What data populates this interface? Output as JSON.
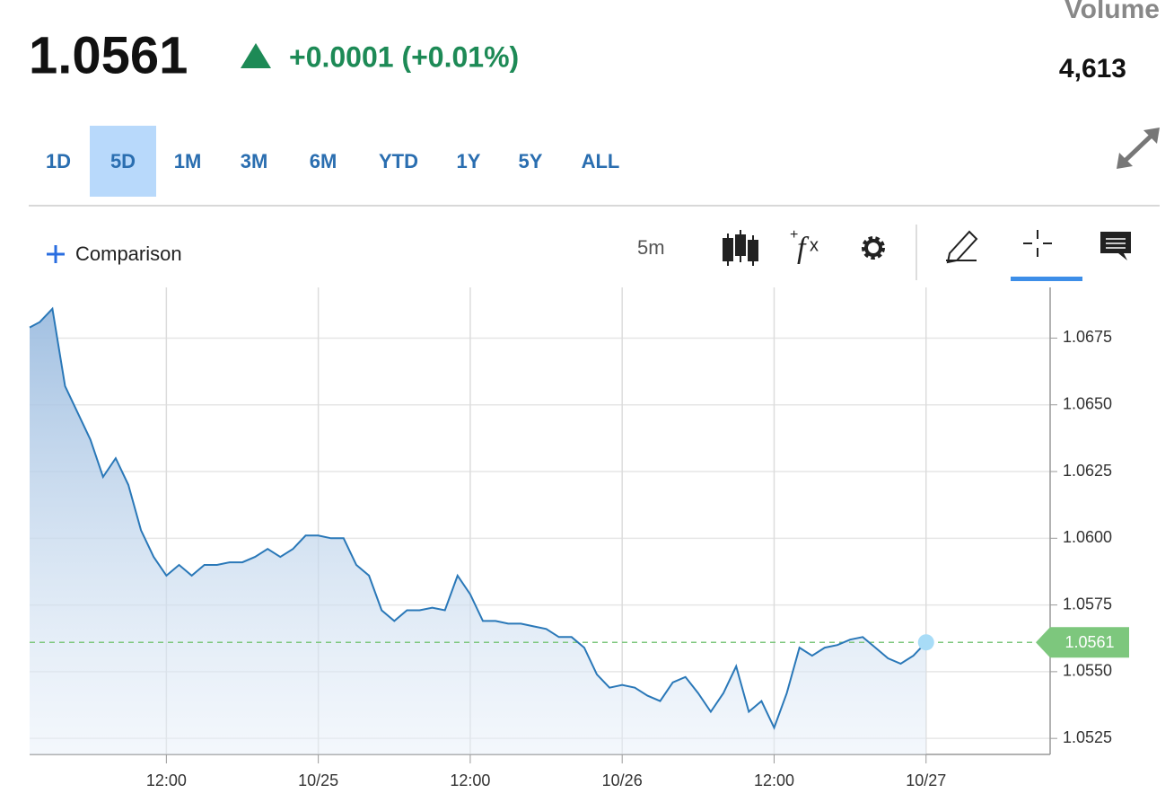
{
  "header": {
    "price": "1.0561",
    "change": "+0.0001 (+0.01%)",
    "volume_label": "Volume",
    "volume": "4,613"
  },
  "tabs": [
    "1D",
    "5D",
    "1M",
    "3M",
    "6M",
    "YTD",
    "1Y",
    "5Y",
    "ALL"
  ],
  "active_tab_index": 1,
  "toolbar": {
    "comparison": "Comparison",
    "interval": "5m"
  },
  "chart_data": {
    "type": "line",
    "x": [
      1.2,
      2,
      3,
      4,
      5,
      6,
      7,
      8,
      9,
      10,
      11,
      12,
      13,
      14,
      15,
      16,
      17,
      18,
      19,
      20,
      21,
      22,
      23,
      24,
      25,
      26,
      27,
      28,
      29,
      30,
      31,
      32,
      33,
      34,
      35,
      36,
      37,
      38,
      39,
      40,
      41,
      42,
      43,
      44,
      45,
      46,
      47,
      48,
      49,
      50,
      51,
      52,
      53,
      54,
      55,
      56,
      57,
      58,
      59,
      60,
      61,
      62,
      63,
      64,
      65,
      66,
      67,
      68,
      69,
      70,
      71,
      72
    ],
    "series": [
      {
        "color": "#2a78b8",
        "values": [
          1.0679,
          1.0681,
          1.0686,
          1.0657,
          1.0647,
          1.0637,
          1.0623,
          1.063,
          1.062,
          1.0603,
          1.0593,
          1.0586,
          1.059,
          1.0586,
          1.059,
          1.059,
          1.0591,
          1.0591,
          1.0593,
          1.0596,
          1.0593,
          1.0596,
          1.0601,
          1.0601,
          1.06,
          1.06,
          1.059,
          1.0586,
          1.0573,
          1.0569,
          1.0573,
          1.0573,
          1.0574,
          1.0573,
          1.0586,
          1.0579,
          1.0569,
          1.0569,
          1.0568,
          1.0568,
          1.0567,
          1.0566,
          1.0563,
          1.0563,
          1.0559,
          1.0549,
          1.0544,
          1.0545,
          1.0544,
          1.0541,
          1.0539,
          1.0546,
          1.0548,
          1.0542,
          1.0535,
          1.0542,
          1.0552,
          1.0535,
          1.0539,
          1.0529,
          1.0542,
          1.0559,
          1.0556,
          1.0559,
          1.056,
          1.0562,
          1.0563,
          1.0559,
          1.0555,
          1.0553,
          1.0556,
          1.0561
        ]
      }
    ],
    "price_line": {
      "value": 1.0561,
      "color": "#7dc77d"
    },
    "xlim": [
      1.2,
      81.8
    ],
    "xticks": [
      {
        "value": 12,
        "label": "12:00"
      },
      {
        "value": 24,
        "label": "10/25"
      },
      {
        "value": 36,
        "label": "12:00"
      },
      {
        "value": 48,
        "label": "10/26"
      },
      {
        "value": 60,
        "label": "12:00"
      },
      {
        "value": 72,
        "label": "10/27"
      }
    ],
    "ylim": [
      1.0519,
      1.0694
    ],
    "yticks": [
      1.0525,
      {
        "value": 1.055,
        "label": "1.0550"
      },
      1.0575,
      {
        "value": 1.06,
        "label": "1.0600"
      },
      1.0625,
      {
        "value": 1.065,
        "label": "1.0650"
      },
      1.0675
    ],
    "grid": true
  }
}
